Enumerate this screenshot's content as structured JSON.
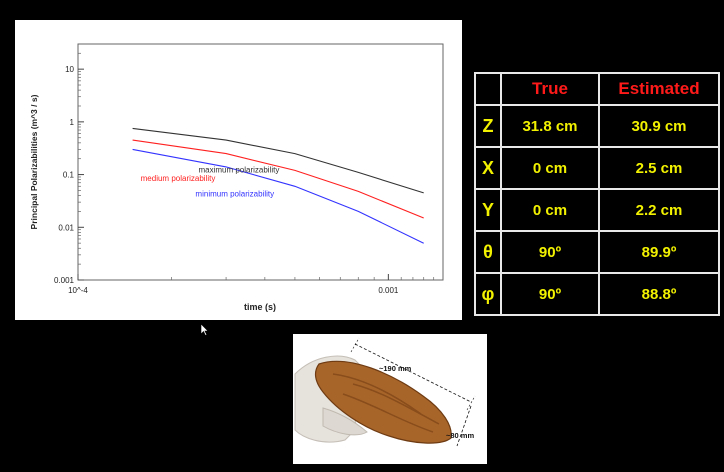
{
  "chart_data": {
    "type": "line",
    "xlabel": "time (s)",
    "ylabel": "Principal Polarizabilities  (m^3 / s)",
    "x_scale": "log",
    "y_scale": "log",
    "xlim": [
      0.0001,
      0.0015
    ],
    "ylim": [
      0.001,
      30
    ],
    "x_ticks": [
      {
        "value": 0.0001,
        "label": "10^-4"
      },
      {
        "value": 0.001,
        "label": "0.001"
      }
    ],
    "y_ticks": [
      {
        "value": 10,
        "label": "10"
      },
      {
        "value": 1,
        "label": "1"
      },
      {
        "value": 0.1,
        "label": "0.1"
      },
      {
        "value": 0.01,
        "label": "0.01"
      },
      {
        "value": 0.001,
        "label": "0.001"
      }
    ],
    "grid": false,
    "series": [
      {
        "name": "maximum polarizability",
        "color": "#333333",
        "x": [
          0.00015,
          0.0003,
          0.0005,
          0.0008,
          0.0013
        ],
        "y": [
          0.75,
          0.45,
          0.25,
          0.11,
          0.045
        ]
      },
      {
        "name": "medium polarizability",
        "color": "#ff2020",
        "x": [
          0.00015,
          0.0003,
          0.0005,
          0.0008,
          0.0013
        ],
        "y": [
          0.45,
          0.25,
          0.12,
          0.048,
          0.015
        ]
      },
      {
        "name": "minimum polarizability",
        "color": "#3333ff",
        "x": [
          0.00015,
          0.0003,
          0.0005,
          0.0008,
          0.0013
        ],
        "y": [
          0.3,
          0.14,
          0.06,
          0.02,
          0.005
        ]
      }
    ]
  },
  "table": {
    "headers": [
      "",
      "True",
      "Estimated"
    ],
    "rows": [
      {
        "param": "Z",
        "true": "31.8 cm",
        "est": "30.9 cm"
      },
      {
        "param": "X",
        "true": "0 cm",
        "est": "2.5 cm"
      },
      {
        "param": "Y",
        "true": "0 cm",
        "est": "2.2 cm"
      },
      {
        "param": "θ",
        "true": "90º",
        "est": "89.9º"
      },
      {
        "param": "φ",
        "true": "90º",
        "est": "88.8º"
      }
    ]
  },
  "photo": {
    "length_label": "~190 mm",
    "width_label": "~80 mm"
  }
}
